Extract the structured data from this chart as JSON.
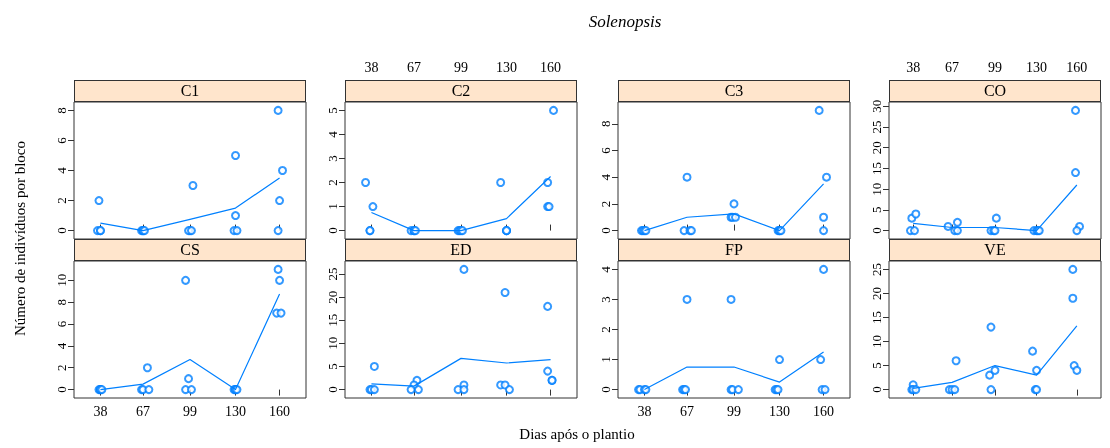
{
  "chart_data": [
    {
      "type": "scatter",
      "title": "C1",
      "ylabel": "Número de indivíduos por bloco",
      "xlim": [
        20,
        178
      ],
      "xticks": [
        38,
        67,
        99,
        130,
        160
      ],
      "ylim": [
        -0.56,
        8.56
      ],
      "yticks": [
        0,
        2,
        4,
        6,
        8
      ],
      "grid": false,
      "tick_labels": "y",
      "series": [
        {
          "type": "scatter",
          "marker": "circle",
          "color": "#0080ff",
          "x": [
            37,
            36,
            38,
            38,
            66,
            67,
            67,
            68,
            101,
            99,
            98,
            100,
            130,
            130,
            129,
            131,
            159,
            162,
            160,
            159
          ],
          "values": [
            2,
            0,
            0,
            0,
            0,
            0,
            0,
            0,
            3,
            0,
            0,
            0,
            5,
            1,
            0,
            0,
            8,
            4,
            2,
            0
          ]
        },
        {
          "type": "line",
          "marker": "none",
          "color": "#0080ff",
          "x": [
            38,
            67,
            99,
            130,
            160
          ],
          "values": [
            0.5,
            0,
            0.75,
            1.5,
            3.5
          ]
        }
      ]
    },
    {
      "type": "scatter",
      "title": "C2",
      "annotations": [
        "Solenopsis"
      ],
      "xlim": [
        20,
        178
      ],
      "xticks": [
        38,
        67,
        99,
        130,
        160
      ],
      "ylim": [
        -0.35,
        5.35
      ],
      "yticks": [
        0,
        1,
        2,
        3,
        4,
        5
      ],
      "grid": false,
      "series": [
        {
          "type": "scatter",
          "marker": "circle",
          "color": "#0080ff",
          "x": [
            34,
            39,
            37,
            37,
            65,
            67,
            67,
            68,
            97,
            98,
            99,
            100,
            126,
            130,
            130,
            130,
            162,
            158,
            158,
            159
          ],
          "values": [
            2,
            1,
            0,
            0,
            0,
            0,
            0,
            0,
            0,
            0,
            0,
            0,
            2,
            0,
            0,
            0,
            5,
            2,
            1,
            1
          ]
        },
        {
          "type": "line",
          "marker": "none",
          "color": "#0080ff",
          "x": [
            38,
            67,
            99,
            130,
            160
          ],
          "values": [
            0.75,
            0,
            0,
            0.5,
            2.25
          ]
        }
      ]
    },
    {
      "type": "scatter",
      "title": "C3",
      "xlim": [
        20,
        178
      ],
      "xticks": [
        38,
        67,
        99,
        130,
        160
      ],
      "ylim": [
        -0.63,
        9.63
      ],
      "yticks": [
        0,
        2,
        4,
        6,
        8
      ],
      "grid": false,
      "tick_labels": "y",
      "series": [
        {
          "type": "scatter",
          "marker": "circle",
          "color": "#0080ff",
          "x": [
            36,
            37,
            38,
            39,
            67,
            65,
            69,
            70,
            99,
            97,
            98,
            100,
            129,
            130,
            130,
            131,
            157,
            162,
            160,
            160
          ],
          "values": [
            0,
            0,
            0,
            0,
            4,
            0,
            0,
            0,
            2,
            1,
            1,
            1,
            0,
            0,
            0,
            0,
            9,
            4,
            1,
            0
          ]
        },
        {
          "type": "line",
          "marker": "none",
          "color": "#0080ff",
          "x": [
            38,
            67,
            99,
            130,
            160
          ],
          "values": [
            0,
            1,
            1.25,
            0,
            3.5
          ]
        }
      ]
    },
    {
      "type": "scatter",
      "title": "CO",
      "xlim": [
        20,
        178
      ],
      "xticks": [
        38,
        67,
        99,
        130,
        160
      ],
      "ylim": [
        -2.03,
        31.03
      ],
      "yticks": [
        0,
        5,
        10,
        15,
        20,
        25,
        30
      ],
      "grid": false,
      "series": [
        {
          "type": "scatter",
          "marker": "circle",
          "color": "#0080ff",
          "x": [
            37,
            40,
            36,
            39,
            64,
            71,
            69,
            71,
            100,
            96,
            98,
            99,
            128,
            130,
            131,
            132,
            159,
            159,
            162,
            160
          ],
          "values": [
            3,
            4,
            0,
            0,
            1,
            2,
            0,
            0,
            3,
            0,
            0,
            0,
            0,
            0,
            0,
            0,
            29,
            14,
            1,
            0
          ]
        },
        {
          "type": "line",
          "marker": "none",
          "color": "#0080ff",
          "x": [
            38,
            67,
            99,
            130,
            160
          ],
          "values": [
            1.75,
            0.75,
            0.75,
            0,
            11
          ]
        }
      ]
    },
    {
      "type": "scatter",
      "title": "CS",
      "xlim": [
        20,
        178
      ],
      "xticks": [
        38,
        67,
        99,
        130,
        160
      ],
      "ylim": [
        -0.77,
        11.77
      ],
      "yticks": [
        0,
        2,
        4,
        6,
        8,
        10
      ],
      "grid": false,
      "series": [
        {
          "type": "scatter",
          "marker": "circle",
          "color": "#0080ff",
          "x": [
            37,
            38,
            38,
            39,
            70,
            66,
            67,
            71,
            96,
            98,
            96,
            100,
            129,
            130,
            130,
            131,
            159,
            160,
            158,
            161
          ],
          "values": [
            0,
            0,
            0,
            0,
            2,
            0,
            0,
            0,
            10,
            1,
            0,
            0,
            0,
            0,
            0,
            0,
            11,
            10,
            7,
            7
          ]
        },
        {
          "type": "line",
          "marker": "none",
          "color": "#0080ff",
          "x": [
            38,
            67,
            99,
            130,
            160
          ],
          "values": [
            0,
            0.5,
            2.75,
            0,
            8.75
          ]
        }
      ]
    },
    {
      "type": "scatter",
      "title": "ED",
      "xlabel": "Dias após o plantio",
      "xlim": [
        20,
        178
      ],
      "xticks": [
        38,
        67,
        99,
        130,
        160
      ],
      "ylim": [
        -1.82,
        27.82
      ],
      "yticks": [
        0,
        5,
        10,
        15,
        20,
        25
      ],
      "grid": false,
      "tick_labels": "y",
      "series": [
        {
          "type": "scatter",
          "marker": "circle",
          "color": "#0080ff",
          "x": [
            40,
            37,
            38,
            40,
            69,
            67,
            65,
            70,
            101,
            101,
            97,
            101,
            129,
            126,
            129,
            132,
            158,
            158,
            161,
            161
          ],
          "values": [
            5,
            0,
            0,
            0,
            2,
            1,
            0,
            0,
            26,
            1,
            0,
            0,
            21,
            1,
            1,
            0,
            18,
            4,
            2,
            2
          ]
        },
        {
          "type": "line",
          "marker": "none",
          "color": "#0080ff",
          "x": [
            38,
            67,
            99,
            130,
            160
          ],
          "values": [
            1.25,
            0.75,
            6.75,
            5.75,
            6.5
          ]
        }
      ]
    },
    {
      "type": "scatter",
      "title": "FP",
      "xlim": [
        20,
        178
      ],
      "xticks": [
        38,
        67,
        99,
        130,
        160
      ],
      "ylim": [
        -0.28,
        4.28
      ],
      "yticks": [
        0,
        1,
        2,
        3,
        4
      ],
      "grid": false,
      "series": [
        {
          "type": "scatter",
          "marker": "circle",
          "color": "#0080ff",
          "x": [
            34,
            35,
            38,
            39,
            67,
            64,
            65,
            66,
            97,
            97,
            98,
            102,
            130,
            127,
            128,
            129,
            160,
            158,
            159,
            161
          ],
          "values": [
            0,
            0,
            0,
            0,
            3,
            0,
            0,
            0,
            3,
            0,
            0,
            0,
            1,
            0,
            0,
            0,
            4,
            1,
            0,
            0
          ]
        },
        {
          "type": "line",
          "marker": "none",
          "color": "#0080ff",
          "x": [
            38,
            67,
            99,
            130,
            160
          ],
          "values": [
            0,
            0.75,
            0.75,
            0.25,
            1.25
          ]
        }
      ]
    },
    {
      "type": "scatter",
      "title": "VE",
      "xlim": [
        20,
        178
      ],
      "xticks": [
        38,
        67,
        99,
        130,
        160
      ],
      "ylim": [
        -1.75,
        26.75
      ],
      "yticks": [
        0,
        5,
        10,
        15,
        20,
        25
      ],
      "grid": false,
      "tick_labels": "y",
      "series": [
        {
          "type": "scatter",
          "marker": "circle",
          "color": "#0080ff",
          "x": [
            38,
            37,
            38,
            40,
            70,
            65,
            67,
            69,
            96,
            95,
            99,
            96,
            127,
            130,
            129,
            130,
            157,
            157,
            158,
            160
          ],
          "values": [
            1,
            0,
            0,
            0,
            6,
            0,
            0,
            0,
            13,
            3,
            4,
            0,
            8,
            4,
            0,
            0,
            25,
            19,
            5,
            4
          ]
        },
        {
          "type": "line",
          "marker": "none",
          "color": "#0080ff",
          "x": [
            38,
            67,
            99,
            130,
            160
          ],
          "values": [
            0.25,
            1.5,
            5,
            3,
            13.25
          ]
        }
      ]
    }
  ]
}
